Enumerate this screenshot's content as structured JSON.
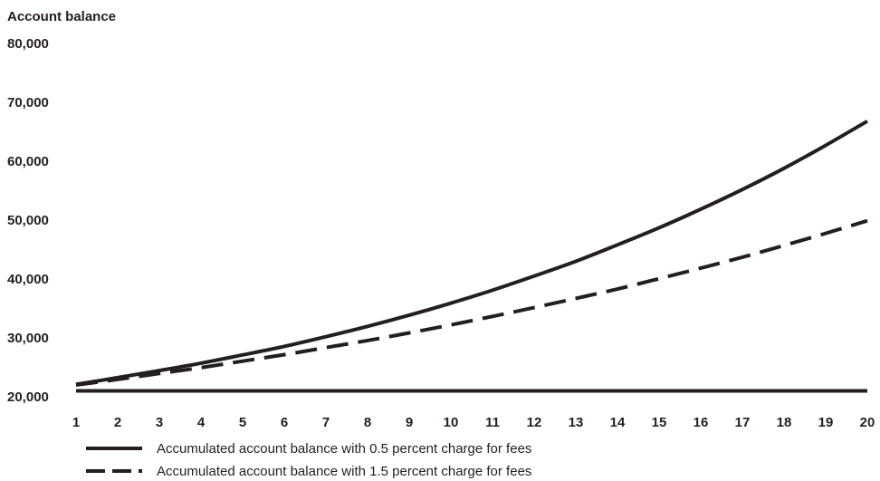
{
  "chart_data": {
    "type": "line",
    "ylabel": "Account balance",
    "xlabel": "",
    "title": "",
    "x": [
      1,
      2,
      3,
      4,
      5,
      6,
      7,
      8,
      9,
      10,
      11,
      12,
      13,
      14,
      15,
      16,
      17,
      18,
      19,
      20
    ],
    "ylim": [
      20000,
      80000
    ],
    "yticks": [
      20000,
      30000,
      40000,
      50000,
      60000,
      70000,
      80000
    ],
    "ytick_labels": [
      "20,000",
      "30,000",
      "40,000",
      "50,000",
      "60,000",
      "70,000",
      "80,000"
    ],
    "xtick_labels": [
      "1",
      "2",
      "3",
      "4",
      "5",
      "6",
      "7",
      "8",
      "9",
      "10",
      "11",
      "12",
      "13",
      "14",
      "15",
      "16",
      "17",
      "18",
      "19",
      "20"
    ],
    "grid": false,
    "legend_position": "bottom-left",
    "series": [
      {
        "name": "Accumulated account balance with 0.5 percent charge for fees",
        "style": "solid",
        "color": "#231f20",
        "values": [
          22100,
          23250,
          24450,
          25700,
          27100,
          28550,
          30200,
          31950,
          33850,
          35900,
          38100,
          40500,
          43000,
          45800,
          48700,
          51850,
          55200,
          58800,
          62700,
          66800
        ]
      },
      {
        "name": "Accumulated account balance with 1.5 percent charge for fees",
        "style": "dashed",
        "color": "#231f20",
        "values": [
          22000,
          22950,
          23950,
          24950,
          26050,
          27150,
          28350,
          29550,
          30850,
          32200,
          33650,
          35150,
          36700,
          38300,
          40050,
          41850,
          43700,
          45700,
          47750,
          49900
        ]
      }
    ]
  }
}
